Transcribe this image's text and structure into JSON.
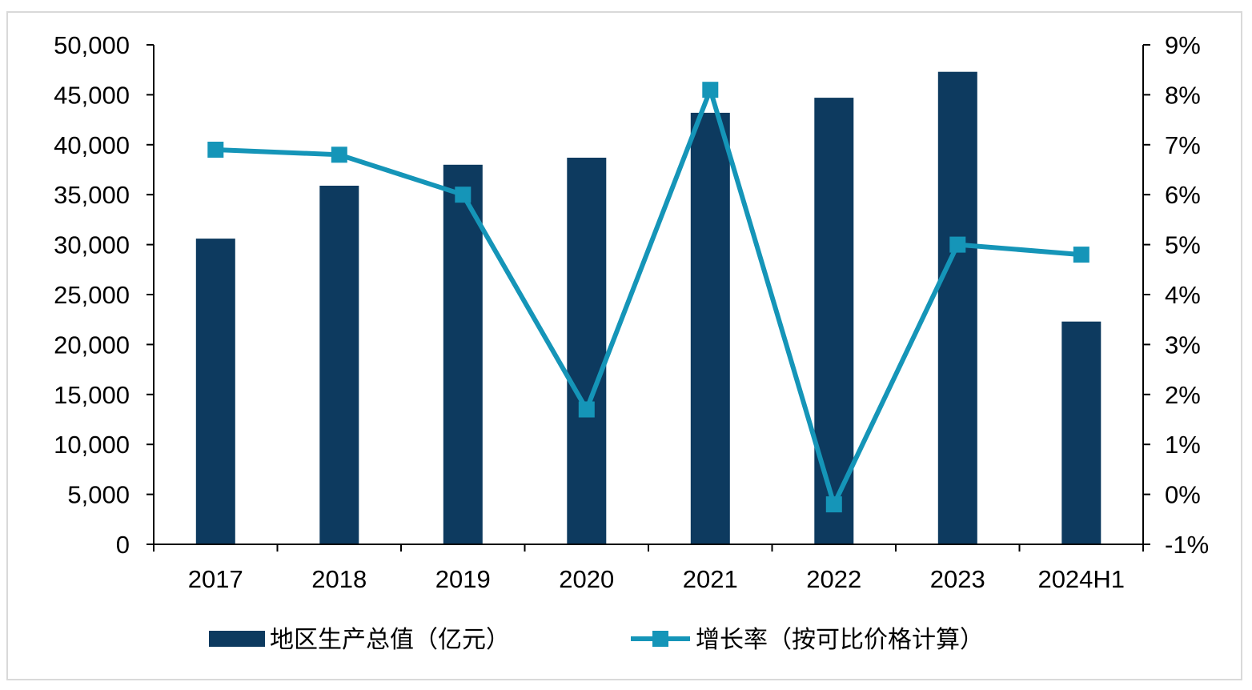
{
  "chart_data": {
    "type": "bar",
    "categories": [
      "2017",
      "2018",
      "2019",
      "2020",
      "2021",
      "2022",
      "2023",
      "2024H1"
    ],
    "series": [
      {
        "name": "地区生产总值（亿元）",
        "type": "bar",
        "axis": "left",
        "color": "#0d3a5f",
        "values": [
          30600,
          35900,
          38000,
          38700,
          43200,
          44700,
          47300,
          22300
        ]
      },
      {
        "name": "增长率（按可比价格计算）",
        "type": "line",
        "axis": "right",
        "color": "#1595b8",
        "marker": "square",
        "values": [
          6.9,
          6.8,
          6.0,
          1.7,
          8.1,
          -0.2,
          5.0,
          4.8
        ]
      }
    ],
    "y_left": {
      "ylim": [
        0,
        50000
      ],
      "ticks": [
        0,
        5000,
        10000,
        15000,
        20000,
        25000,
        30000,
        35000,
        40000,
        45000,
        50000
      ],
      "tick_labels": [
        "0",
        "5,000",
        "10,000",
        "15,000",
        "20,000",
        "25,000",
        "30,000",
        "35,000",
        "40,000",
        "45,000",
        "50,000"
      ]
    },
    "y_right": {
      "ylim": [
        -1,
        9
      ],
      "ticks": [
        -1,
        0,
        1,
        2,
        3,
        4,
        5,
        6,
        7,
        8,
        9
      ],
      "tick_labels": [
        "-1%",
        "0%",
        "1%",
        "2%",
        "3%",
        "4%",
        "5%",
        "6%",
        "7%",
        "8%",
        "9%"
      ]
    },
    "grid": false,
    "legend_position": "bottom"
  }
}
